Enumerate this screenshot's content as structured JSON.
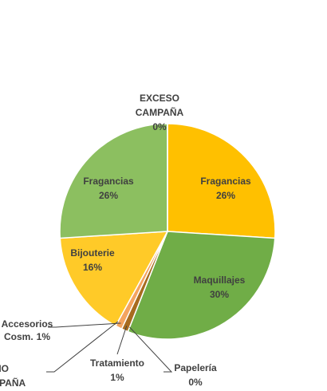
{
  "chart_data": {
    "type": "pie",
    "categories": [
      [
        "Fragancias"
      ],
      [
        "Maquillajes"
      ],
      [
        "Papelería"
      ],
      [
        "Tratamiento"
      ],
      [
        "Accesorios",
        "Cosm."
      ],
      [
        "NO",
        "CAMPAÑA"
      ],
      [
        "Bijouterie"
      ],
      [
        "Fragancias"
      ],
      [
        "EXCESO",
        "CAMPAÑA"
      ]
    ],
    "values": [
      26,
      30,
      0,
      1,
      1,
      0,
      16,
      26,
      0
    ],
    "value_labels": [
      "26%",
      "30%",
      "0%",
      "1%",
      "1%",
      null,
      "16%",
      "26%",
      "0%"
    ],
    "colors": [
      "#FFC000",
      "#70AD47",
      "#9C7A0C",
      "#A86B1F",
      "#F4A460",
      "#C9A227",
      "#FFCA28",
      "#8CBF60",
      "#E2B33C"
    ]
  }
}
